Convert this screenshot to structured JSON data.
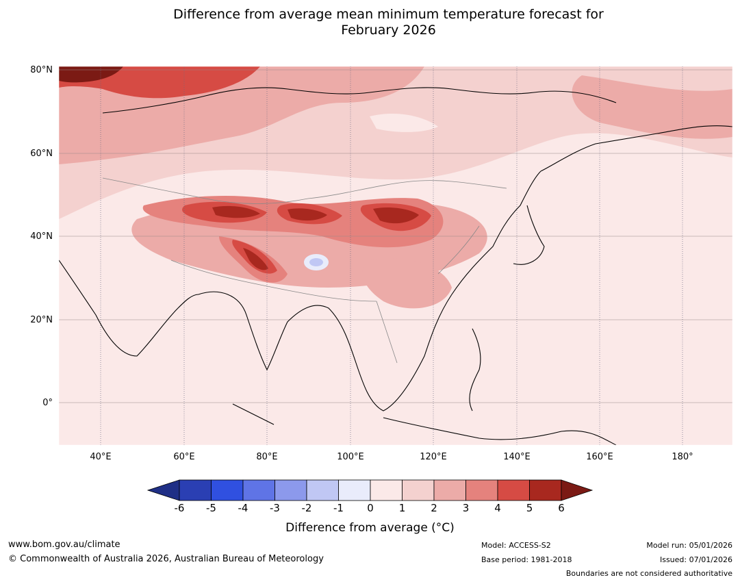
{
  "title_line1": "Difference from average mean minimum temperature forecast for",
  "title_line2": "February 2026",
  "map": {
    "lat_labels": [
      "80°N",
      "60°N",
      "40°N",
      "20°N",
      "0°"
    ],
    "lon_labels": [
      "40°E",
      "60°E",
      "80°E",
      "100°E",
      "120°E",
      "140°E",
      "160°E",
      "180°"
    ],
    "region": "Asia"
  },
  "colorbar": {
    "ticks": [
      "-6",
      "-5",
      "-4",
      "-3",
      "-2",
      "-1",
      "0",
      "1",
      "2",
      "3",
      "4",
      "5",
      "6"
    ],
    "colors": [
      "#1f2f86",
      "#2a3fb3",
      "#3050e0",
      "#5f74e6",
      "#8c99ec",
      "#c0c7f4",
      "#e9ecfb",
      "#fbe9e8",
      "#f4d1cf",
      "#ecaba8",
      "#e5827d",
      "#d64b44",
      "#a8281f",
      "#7b1a14"
    ],
    "label": "Difference from average (°C)"
  },
  "footer": {
    "url": "www.bom.gov.au/climate",
    "copyright": "© Commonwealth of Australia 2026, Australian Bureau of Meteorology",
    "model": "Model: ACCESS-S2",
    "base_period": "Base period: 1981-2018",
    "model_run": "Model run: 05/01/2026",
    "issued": "Issued: 07/01/2026",
    "disclaimer": "Boundaries are not considered authoritative"
  }
}
